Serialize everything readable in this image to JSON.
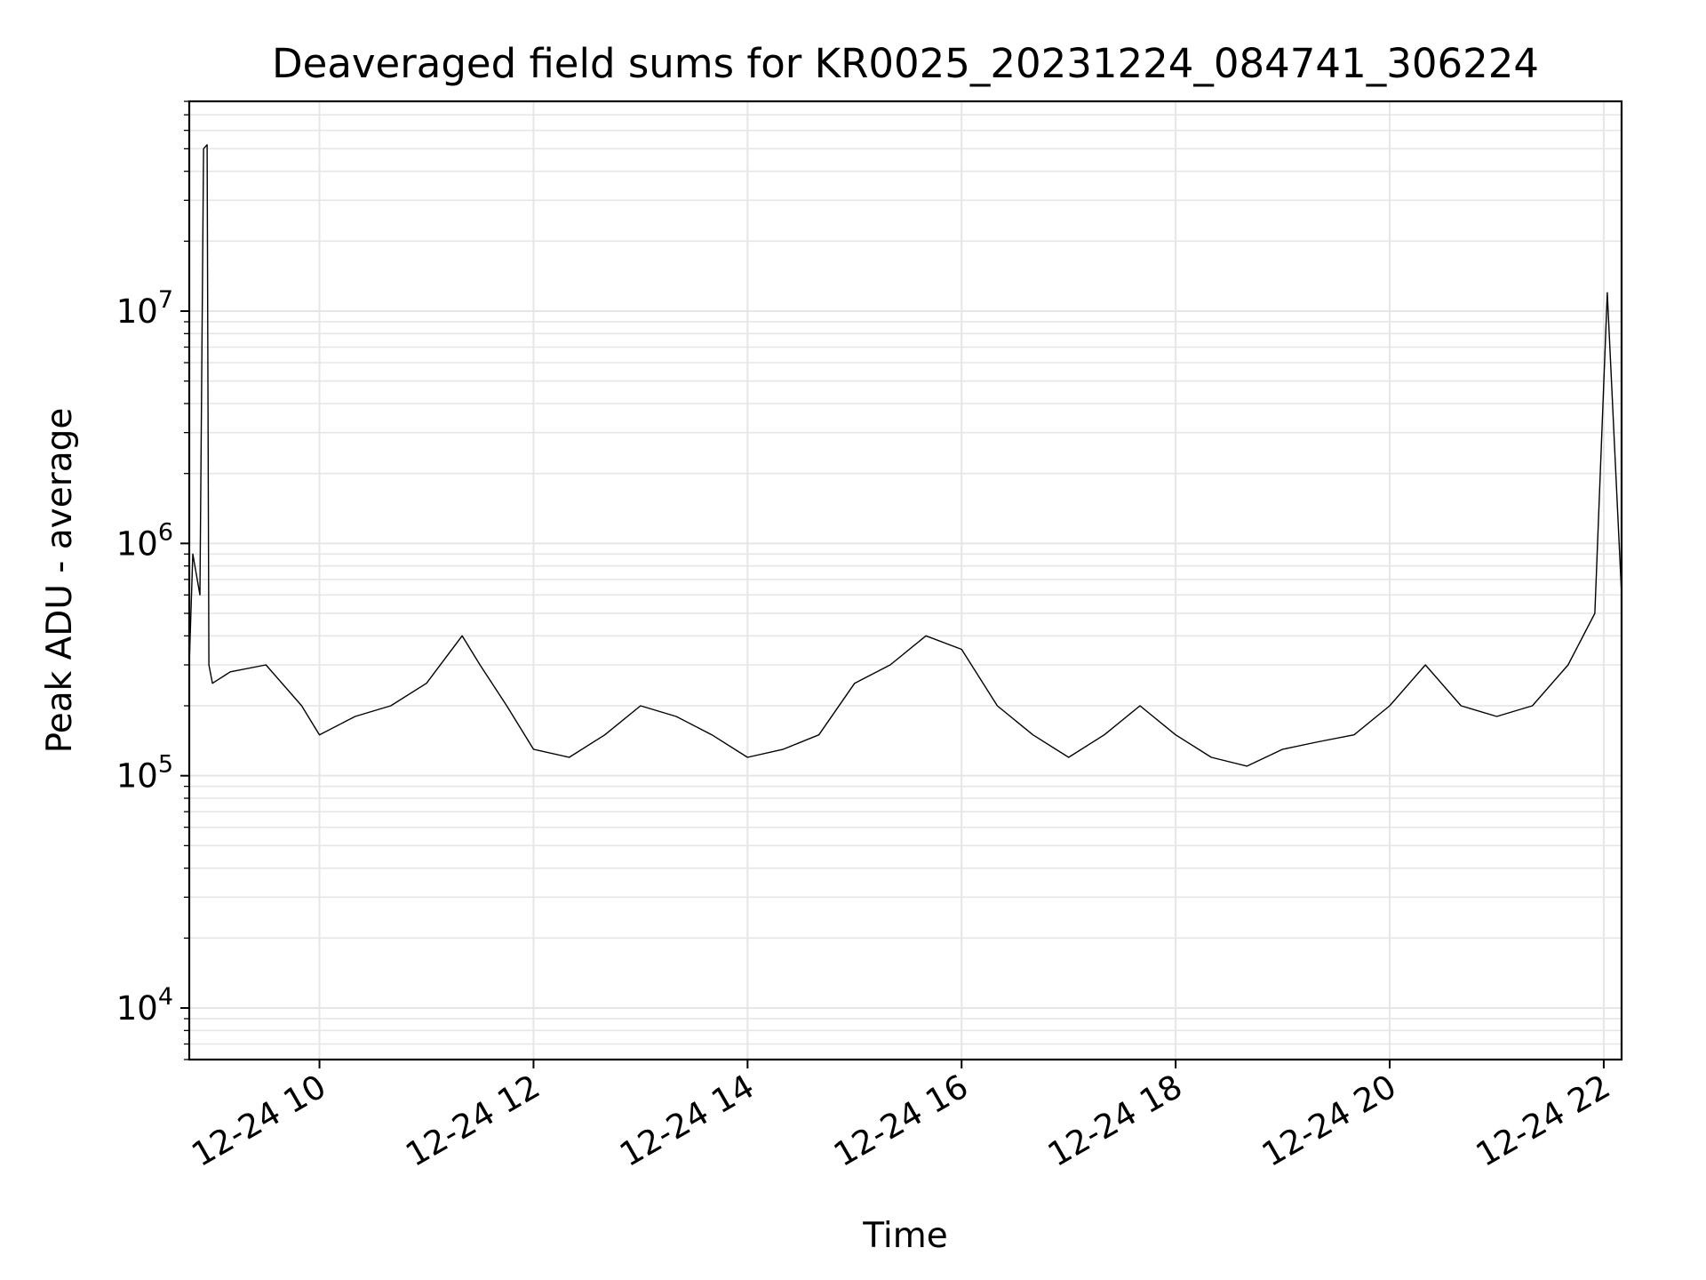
{
  "chart_data": {
    "type": "line",
    "title": "Deaveraged field sums for KR0025_20231224_084741_306224",
    "xlabel": "Time",
    "ylabel": "Peak ADU - average",
    "y_scale": "log",
    "grid": true,
    "line_color": "#000000",
    "grid_color": "#e6e6e6",
    "xlim": [
      "2023-12-24 08:47",
      "2023-12-24 22:10"
    ],
    "ylim": [
      6000,
      80000000
    ],
    "x_ticks": [
      {
        "label": "12-24 10",
        "value": "2023-12-24 10:00"
      },
      {
        "label": "12-24 12",
        "value": "2023-12-24 12:00"
      },
      {
        "label": "12-24 14",
        "value": "2023-12-24 14:00"
      },
      {
        "label": "12-24 16",
        "value": "2023-12-24 16:00"
      },
      {
        "label": "12-24 18",
        "value": "2023-12-24 18:00"
      },
      {
        "label": "12-24 20",
        "value": "2023-12-24 20:00"
      },
      {
        "label": "12-24 22",
        "value": "2023-12-24 22:00"
      }
    ],
    "y_ticks": [
      {
        "base": "10",
        "exp": "4",
        "value": 10000
      },
      {
        "base": "10",
        "exp": "5",
        "value": 100000
      },
      {
        "base": "10",
        "exp": "6",
        "value": 1000000
      },
      {
        "base": "10",
        "exp": "7",
        "value": 10000000
      }
    ],
    "series": [
      {
        "x": [
          "2023-12-24 08:47",
          "2023-12-24 08:49",
          "2023-12-24 08:53",
          "2023-12-24 08:55",
          "2023-12-24 08:57",
          "2023-12-24 08:58",
          "2023-12-24 09:00",
          "2023-12-24 09:10",
          "2023-12-24 09:30",
          "2023-12-24 09:50",
          "2023-12-24 10:00",
          "2023-12-24 10:20",
          "2023-12-24 10:40",
          "2023-12-24 11:00",
          "2023-12-24 11:20",
          "2023-12-24 11:30",
          "2023-12-24 11:45",
          "2023-12-24 12:00",
          "2023-12-24 12:20",
          "2023-12-24 12:40",
          "2023-12-24 13:00",
          "2023-12-24 13:20",
          "2023-12-24 13:40",
          "2023-12-24 14:00",
          "2023-12-24 14:20",
          "2023-12-24 14:40",
          "2023-12-24 15:00",
          "2023-12-24 15:20",
          "2023-12-24 15:40",
          "2023-12-24 16:00",
          "2023-12-24 16:20",
          "2023-12-24 16:40",
          "2023-12-24 17:00",
          "2023-12-24 17:20",
          "2023-12-24 17:40",
          "2023-12-24 18:00",
          "2023-12-24 18:20",
          "2023-12-24 18:40",
          "2023-12-24 19:00",
          "2023-12-24 19:20",
          "2023-12-24 19:40",
          "2023-12-24 20:00",
          "2023-12-24 20:20",
          "2023-12-24 20:40",
          "2023-12-24 21:00",
          "2023-12-24 21:20",
          "2023-12-24 21:40",
          "2023-12-24 21:55",
          "2023-12-24 22:02",
          "2023-12-24 22:10"
        ],
        "y": [
          300000,
          900000,
          600000,
          50000000,
          52000000,
          300000,
          250000,
          280000,
          300000,
          200000,
          150000,
          180000,
          200000,
          250000,
          400000,
          300000,
          200000,
          130000,
          120000,
          150000,
          200000,
          180000,
          150000,
          120000,
          130000,
          150000,
          250000,
          300000,
          400000,
          350000,
          200000,
          150000,
          120000,
          150000,
          200000,
          150000,
          120000,
          110000,
          130000,
          140000,
          150000,
          200000,
          300000,
          200000,
          180000,
          200000,
          300000,
          500000,
          12000000,
          600000
        ]
      }
    ]
  }
}
